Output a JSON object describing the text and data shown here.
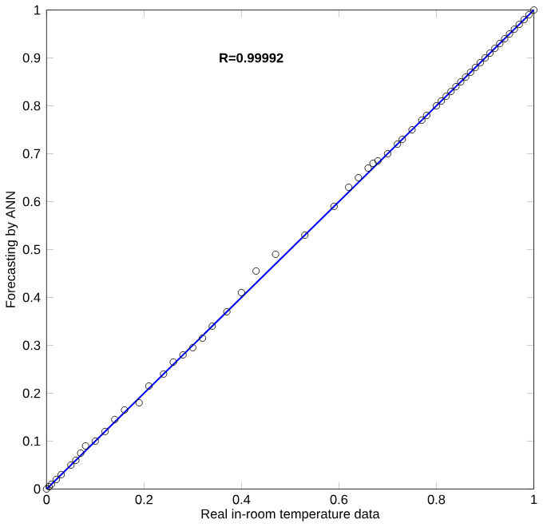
{
  "chart_data": {
    "type": "scatter",
    "xlabel": "Real in-room temperature data",
    "ylabel": "Forecasting by ANN",
    "annotations": [
      "R=0.99992"
    ],
    "xlim": [
      0,
      1
    ],
    "ylim": [
      0,
      1
    ],
    "xticks": [
      0,
      0.2,
      0.4,
      0.6,
      0.8,
      1
    ],
    "yticks": [
      0,
      0.1,
      0.2,
      0.3,
      0.4,
      0.5,
      0.6,
      0.7,
      0.8,
      0.9,
      1
    ],
    "grid": false,
    "series": [
      {
        "color": "#000000",
        "marker": "circle",
        "x": [
          0,
          0.005,
          0.01,
          0.02,
          0.03,
          0.05,
          0.06,
          0.07,
          0.08,
          0.1,
          0.12,
          0.14,
          0.16,
          0.19,
          0.21,
          0.24,
          0.26,
          0.28,
          0.3,
          0.32,
          0.34,
          0.37,
          0.4,
          0.43,
          0.47,
          0.53,
          0.59,
          0.62,
          0.64,
          0.66,
          0.67,
          0.68,
          0.7,
          0.72,
          0.73,
          0.75,
          0.77,
          0.78,
          0.8,
          0.81,
          0.82,
          0.83,
          0.84,
          0.85,
          0.86,
          0.87,
          0.88,
          0.89,
          0.9,
          0.91,
          0.92,
          0.93,
          0.94,
          0.95,
          0.96,
          0.97,
          0.98,
          0.99,
          1
        ],
        "values": [
          0,
          0.005,
          0.01,
          0.02,
          0.03,
          0.05,
          0.06,
          0.075,
          0.09,
          0.1,
          0.12,
          0.145,
          0.165,
          0.18,
          0.215,
          0.24,
          0.265,
          0.28,
          0.295,
          0.315,
          0.34,
          0.37,
          0.41,
          0.455,
          0.49,
          0.53,
          0.59,
          0.63,
          0.65,
          0.67,
          0.68,
          0.685,
          0.7,
          0.72,
          0.73,
          0.75,
          0.77,
          0.78,
          0.8,
          0.81,
          0.82,
          0.83,
          0.84,
          0.85,
          0.86,
          0.87,
          0.88,
          0.89,
          0.9,
          0.91,
          0.92,
          0.93,
          0.94,
          0.95,
          0.96,
          0.97,
          0.98,
          0.99,
          1
        ]
      },
      {
        "type": "line",
        "color": "#0000ff",
        "marker": "none",
        "line_style": "solid",
        "x": [
          0,
          1
        ],
        "values": [
          0,
          1
        ]
      }
    ]
  }
}
